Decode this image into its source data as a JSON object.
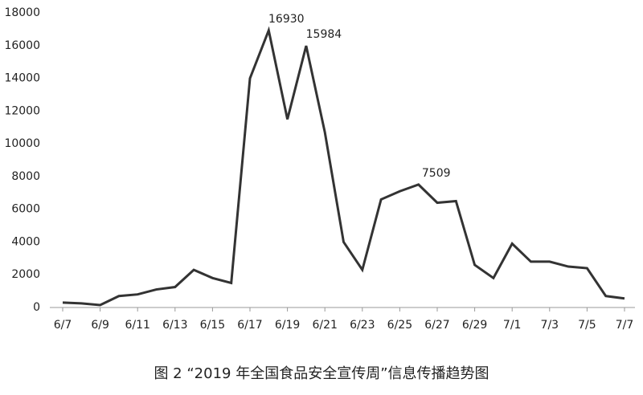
{
  "chart_data": {
    "type": "line",
    "caption": "图 2 “2019 年全国食品安全宣传周”信息传播趋势图",
    "categories": [
      "6/7",
      null,
      "6/9",
      null,
      "6/11",
      null,
      "6/13",
      null,
      "6/15",
      null,
      "6/17",
      null,
      "6/19",
      null,
      "6/21",
      null,
      "6/23",
      null,
      "6/25",
      null,
      "6/27",
      null,
      "6/29",
      null,
      "7/1",
      null,
      "7/3",
      null,
      "7/5",
      null,
      "7/7"
    ],
    "series": [
      {
        "color": "#333333",
        "values": [
          300,
          250,
          150,
          700,
          800,
          1100,
          1250,
          2300,
          1800,
          1500,
          14000,
          16930,
          11500,
          15984,
          10700,
          4000,
          2300,
          6600,
          7100,
          7509,
          6400,
          6500,
          2600,
          1800,
          3900,
          2800,
          2800,
          2500,
          2400,
          700,
          550
        ],
        "value_labels": [
          null,
          null,
          null,
          null,
          null,
          null,
          null,
          null,
          null,
          null,
          null,
          "16930",
          null,
          "15984",
          null,
          null,
          null,
          null,
          null,
          "7509",
          null,
          null,
          null,
          null,
          null,
          null,
          null,
          null,
          null,
          null,
          null
        ]
      }
    ],
    "ylim": [
      0,
      18000
    ],
    "yticks": [
      0,
      2000,
      4000,
      6000,
      8000,
      10000,
      12000,
      14000,
      16000,
      18000
    ],
    "grid": false
  }
}
